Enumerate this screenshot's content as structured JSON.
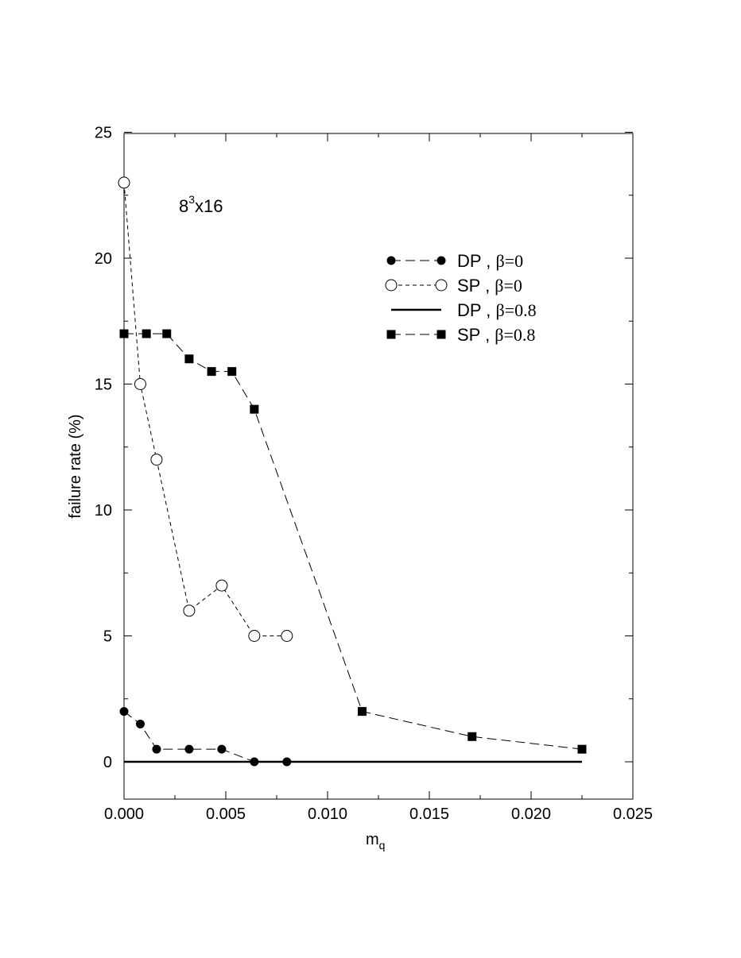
{
  "chart_data": {
    "type": "line",
    "title": "",
    "xlabel": "m",
    "xlabel_sub": "q",
    "ylabel": "failure rate (%)",
    "xlim": [
      0.0,
      0.025
    ],
    "ylim": [
      -1.5,
      25
    ],
    "x_ticks": [
      0.0,
      0.005,
      0.01,
      0.015,
      0.02,
      0.025
    ],
    "x_tick_labels": [
      "0.000",
      "0.005",
      "0.010",
      "0.015",
      "0.020",
      "0.025"
    ],
    "y_ticks": [
      0,
      5,
      10,
      15,
      20,
      25
    ],
    "y_tick_labels": [
      "0",
      "5",
      "10",
      "15",
      "20",
      "25"
    ],
    "grid": false,
    "legend_position": "top-right",
    "annotation": {
      "base": "8",
      "sup": "3",
      "rest": "x16"
    },
    "series": [
      {
        "legend_prefix": "DP , ",
        "legend_beta": "β=0",
        "marker": "filled-circle",
        "line": "long-dash",
        "x": [
          0.0,
          0.0008,
          0.0016,
          0.0032,
          0.0048,
          0.0064,
          0.008
        ],
        "y": [
          2.0,
          1.5,
          0.5,
          0.5,
          0.5,
          0.0,
          0.0
        ]
      },
      {
        "legend_prefix": "SP , ",
        "legend_beta": "β=0",
        "marker": "open-circle",
        "line": "short-dash",
        "x": [
          0.0,
          0.0008,
          0.0016,
          0.0032,
          0.0048,
          0.0064,
          0.008
        ],
        "y": [
          23.0,
          15.0,
          12.0,
          6.0,
          7.0,
          5.0,
          5.0
        ]
      },
      {
        "legend_prefix": "DP , ",
        "legend_beta": "β=0.8",
        "marker": "none",
        "line": "solid",
        "x": [
          0.0,
          0.0225
        ],
        "y": [
          0.0,
          0.0
        ]
      },
      {
        "legend_prefix": "SP , ",
        "legend_beta": "β=0.8",
        "marker": "filled-square",
        "line": "long-dash",
        "x": [
          0.0,
          0.0011,
          0.0021,
          0.0032,
          0.0043,
          0.0053,
          0.0064,
          0.0117,
          0.0171,
          0.0225
        ],
        "y": [
          17.0,
          17.0,
          17.0,
          16.0,
          15.5,
          15.5,
          14.0,
          2.0,
          1.0,
          0.5
        ]
      }
    ]
  }
}
